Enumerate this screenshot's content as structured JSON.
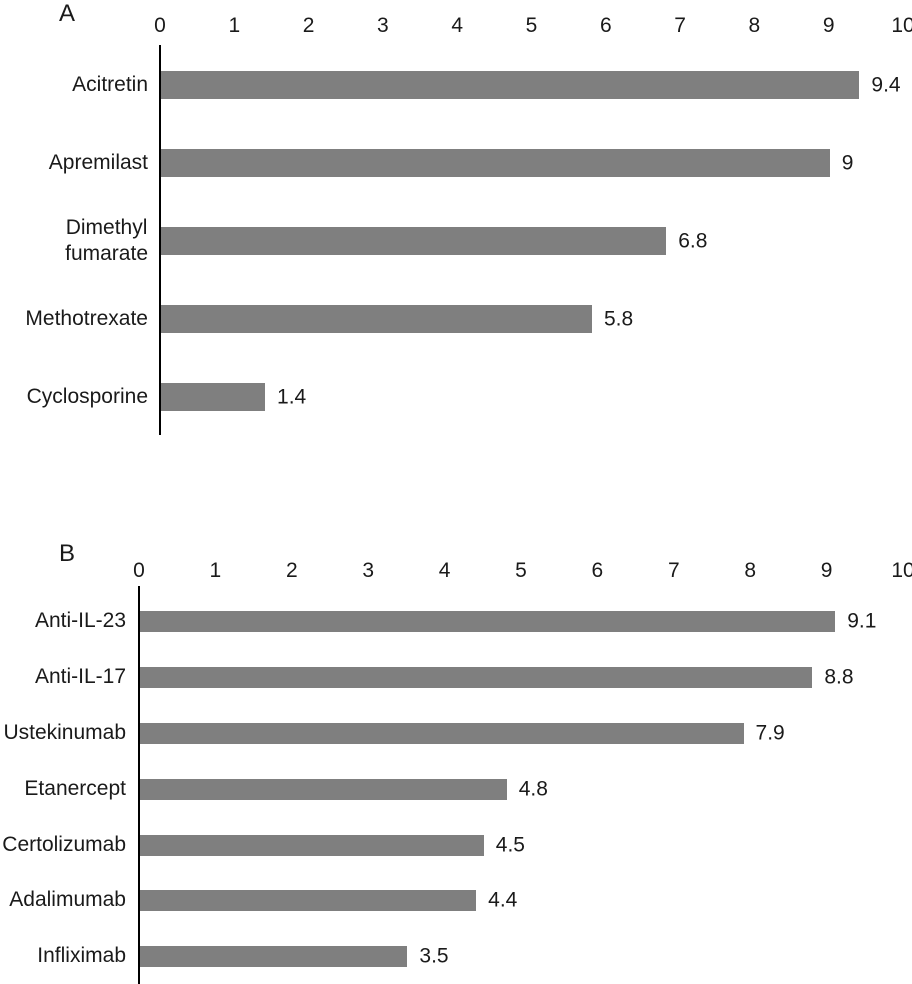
{
  "accent_colors": {
    "bar": "#7f7f7f",
    "axis": "#000000",
    "text": "#1a1a1a",
    "background": "#ffffff"
  },
  "chart_data": [
    {
      "type": "bar",
      "orientation": "horizontal",
      "panel": "A",
      "title": "",
      "xlabel": "",
      "ylabel": "",
      "axis_position": "top",
      "grid": false,
      "xlim": [
        0,
        10
      ],
      "axis_ticks": [
        "0",
        "1",
        "2",
        "3",
        "4",
        "5",
        "6",
        "7",
        "8",
        "9",
        "10"
      ],
      "categories": [
        "Acitretin",
        "Apremilast",
        "Dimethyl\nfumarate",
        "Methotrexate",
        "Cyclosporine"
      ],
      "values": [
        9.4,
        9,
        6.8,
        5.8,
        1.4
      ],
      "value_labels": [
        "9.4",
        "9",
        "6.8",
        "5.8",
        "1.4"
      ]
    },
    {
      "type": "bar",
      "orientation": "horizontal",
      "panel": "B",
      "title": "",
      "xlabel": "",
      "ylabel": "",
      "axis_position": "top",
      "grid": false,
      "xlim": [
        0,
        10
      ],
      "axis_ticks": [
        "0",
        "1",
        "2",
        "3",
        "4",
        "5",
        "6",
        "7",
        "8",
        "9",
        "10"
      ],
      "categories": [
        "Anti-IL-23",
        "Anti-IL-17",
        "Ustekinumab",
        "Etanercept",
        "Certolizumab",
        "Adalimumab",
        "Infliximab"
      ],
      "values": [
        9.1,
        8.8,
        7.9,
        4.8,
        4.5,
        4.4,
        3.5
      ],
      "value_labels": [
        "9.1",
        "8.8",
        "7.9",
        "4.8",
        "4.5",
        "4.4",
        "3.5"
      ]
    }
  ]
}
